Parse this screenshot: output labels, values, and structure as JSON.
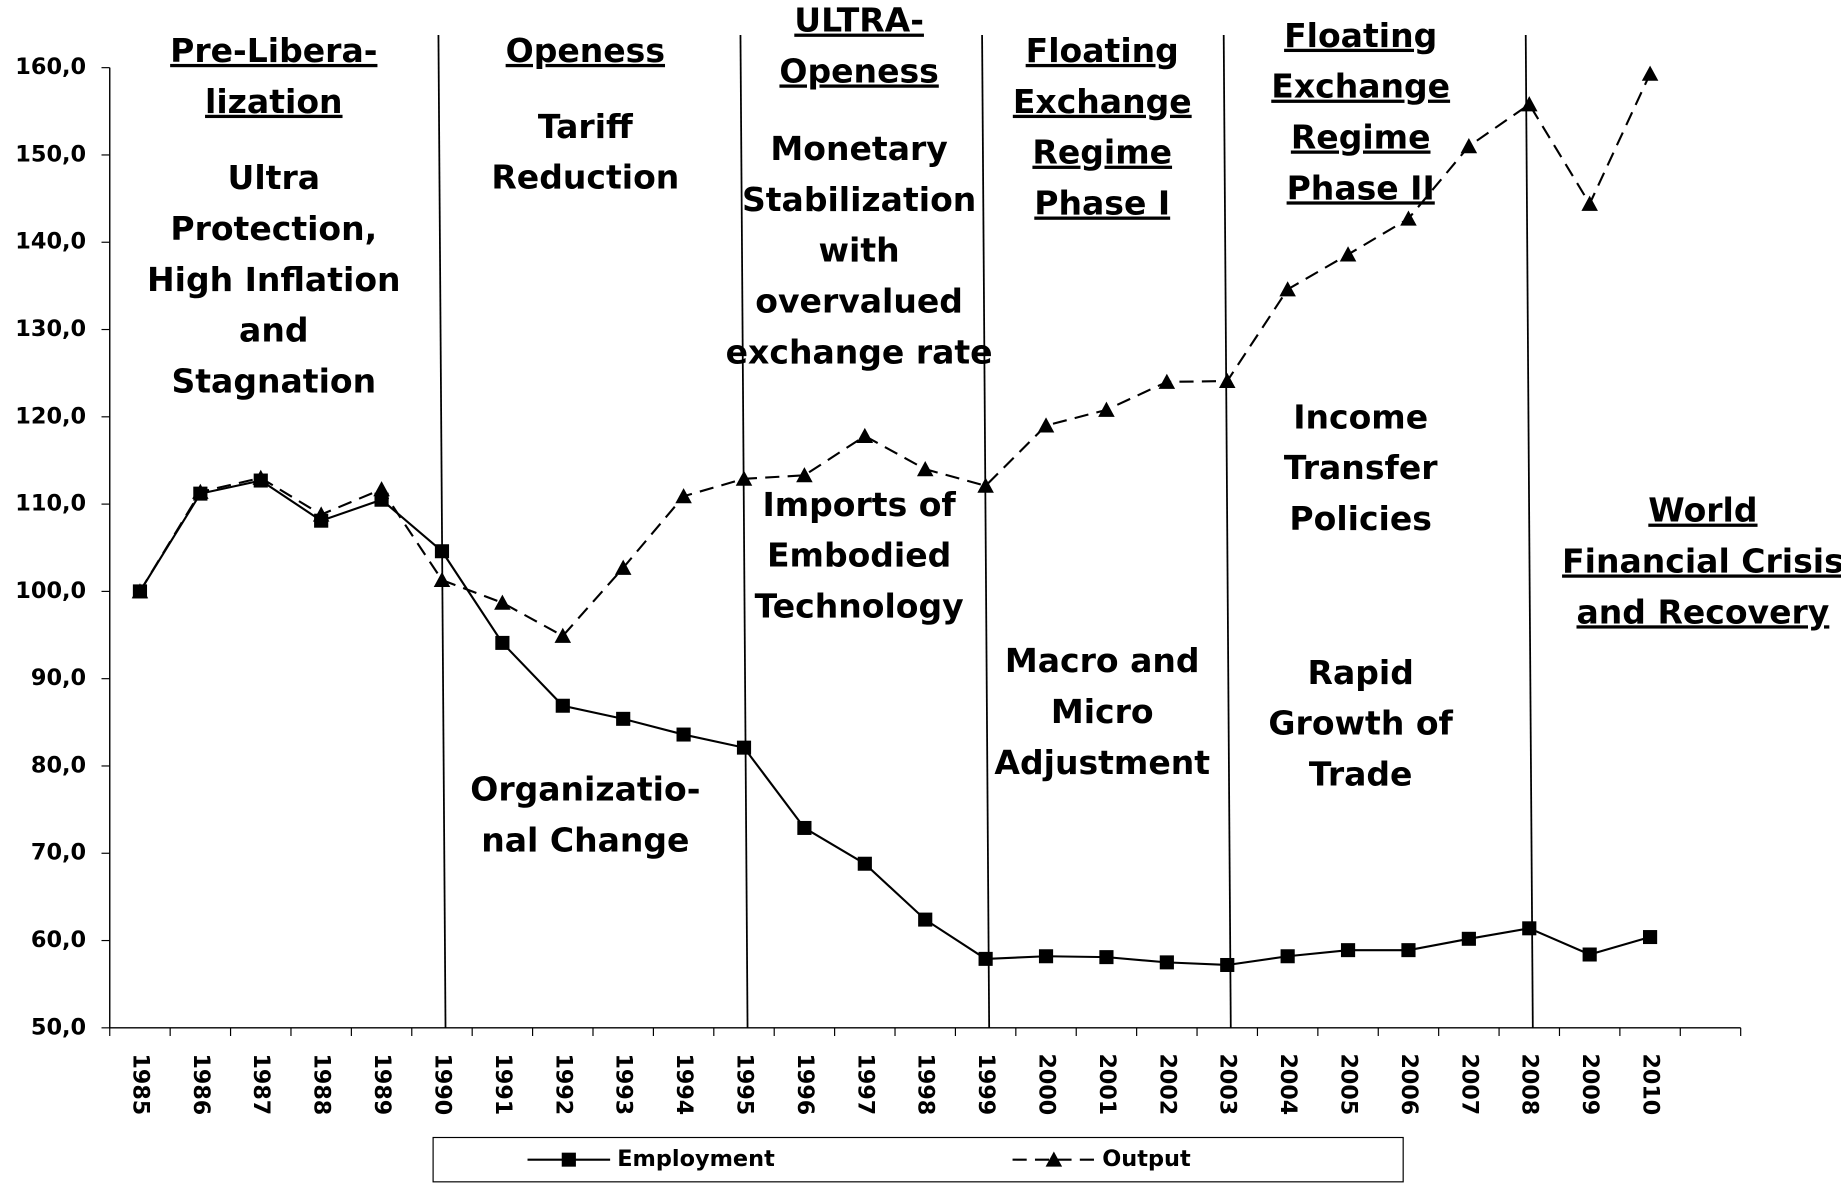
{
  "chart_data": {
    "type": "line",
    "categories": [
      "1985",
      "1986",
      "1987",
      "1988",
      "1989",
      "1990",
      "1991",
      "1992",
      "1993",
      "1994",
      "1995",
      "1996",
      "1997",
      "1998",
      "1999",
      "2000",
      "2001",
      "2002",
      "2003",
      "2004",
      "2005",
      "2006",
      "2007",
      "2008",
      "2009",
      "2010",
      null
    ],
    "series": [
      {
        "name": "Employment",
        "color": "#000000",
        "marker": "square",
        "dash": false,
        "values": [
          100,
          111.2,
          112.7,
          108.1,
          110.5,
          104.6,
          94.1,
          86.9,
          85.4,
          83.6,
          82.1,
          72.9,
          68.8,
          62.4,
          57.9,
          58.2,
          58.1,
          57.5,
          57.2,
          58.2,
          58.9,
          58.9,
          60.2,
          61.4,
          58.4,
          60.4,
          null
        ]
      },
      {
        "name": "Output",
        "color": "#000000",
        "marker": "triangle",
        "dash": true,
        "values": [
          100,
          111.4,
          113.0,
          108.8,
          111.7,
          101.3,
          98.7,
          94.9,
          102.7,
          110.9,
          112.9,
          113.3,
          117.8,
          114.0,
          112.1,
          119.0,
          120.8,
          124.0,
          124.1,
          134.6,
          138.6,
          142.7,
          151.0,
          155.8,
          144.4,
          159.3,
          null
        ]
      }
    ],
    "ylim": [
      50,
      160
    ],
    "yticks": [
      {
        "value": 50,
        "label": "50,0"
      },
      {
        "value": 60,
        "label": "60,0"
      },
      {
        "value": 70,
        "label": "70,0"
      },
      {
        "value": 80,
        "label": "80,0"
      },
      {
        "value": 90,
        "label": "90,0"
      },
      {
        "value": 100,
        "label": "100,0"
      },
      {
        "value": 110,
        "label": "110,0"
      },
      {
        "value": 120,
        "label": "120,0"
      },
      {
        "value": 130,
        "label": "130,0"
      },
      {
        "value": 140,
        "label": "140,0"
      },
      {
        "value": 150,
        "label": "150,0"
      },
      {
        "value": 160,
        "label": "160,0"
      }
    ],
    "grid": false,
    "legend": "bottom",
    "annotations": [
      {
        "heading": [
          "Pre-Libera-",
          "lization"
        ],
        "notes": [
          [
            "Ultra",
            "Protection,",
            "High Inflation",
            "and",
            "Stagnation"
          ]
        ]
      },
      {
        "heading": [
          "Openess"
        ],
        "notes": [
          [
            "Tariff",
            "Reduction"
          ],
          [
            "Organizatio-",
            "nal Change"
          ]
        ]
      },
      {
        "heading": [
          "ULTRA-",
          "Openess"
        ],
        "notes": [
          [
            "Monetary",
            "Stabilization",
            "with",
            "overvalued",
            "exchange rate"
          ],
          [
            "Imports of",
            "Embodied",
            "Technology"
          ]
        ]
      },
      {
        "heading": [
          "Floating",
          "Exchange",
          "Regime",
          "Phase I"
        ],
        "notes": [
          [
            "Macro and",
            "Micro",
            "Adjustment"
          ]
        ]
      },
      {
        "heading": [
          "Floating",
          "Exchange",
          "Regime",
          "Phase II"
        ],
        "notes": [
          [
            "Income",
            "Transfer",
            "Policies"
          ],
          [
            "Rapid",
            "Growth of",
            "Trade"
          ]
        ]
      },
      {
        "heading": [
          "World",
          "Financial Crisis",
          "and Recovery"
        ],
        "notes": []
      }
    ]
  }
}
